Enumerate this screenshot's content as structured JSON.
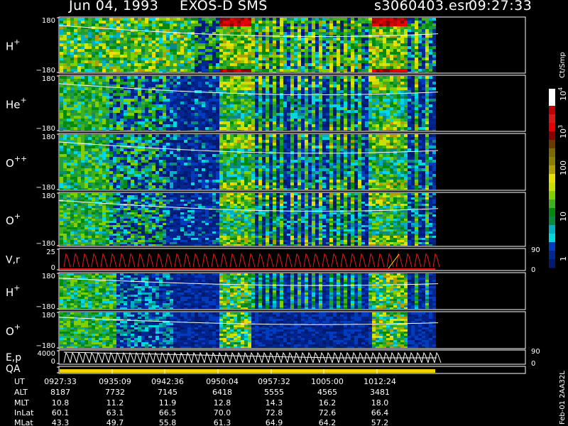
{
  "header": {
    "date": "Jun 04, 1993",
    "instrument": "EXOS-D SMS",
    "file": "s3060403.esr",
    "time": "09:27:33"
  },
  "chart_data": {
    "type": "heatmap",
    "time_ticks": [
      "0927:33",
      "0935:09",
      "0942:36",
      "0950:04",
      "0957:32",
      "1005:00",
      "1012:24"
    ],
    "panels": [
      {
        "label": "H",
        "sup": "+",
        "ytop": "180",
        "ybot": "−180",
        "kind": "spectrogram",
        "mode": "main"
      },
      {
        "label": "He",
        "sup": "+",
        "ytop": "180",
        "ybot": "−180",
        "kind": "spectrogram",
        "mode": "he"
      },
      {
        "label": "O",
        "sup": "++",
        "ytop": "180",
        "ybot": "−180",
        "kind": "spectrogram",
        "mode": "opp"
      },
      {
        "label": "O",
        "sup": "+",
        "ytop": "180",
        "ybot": "−180",
        "kind": "spectrogram",
        "mode": "op"
      },
      {
        "label": "V,r",
        "sup": "",
        "ytop": "25",
        "ybot": "0",
        "right_top": "90",
        "right_bot": "0",
        "kind": "line"
      },
      {
        "label": "H",
        "sup": "+",
        "ytop": "180",
        "ybot": "−180",
        "kind": "spectrogram",
        "mode": "h2"
      },
      {
        "label": "O",
        "sup": "+",
        "ytop": "180",
        "ybot": "−180",
        "kind": "spectrogram",
        "mode": "o2"
      },
      {
        "label": "E,p",
        "sup": "",
        "ytop": "4000",
        "ybot": "0",
        "right_top": "90",
        "right_bot": "0",
        "kind": "line"
      },
      {
        "label": "QA",
        "sup": "",
        "ytop": "",
        "ybot": "",
        "kind": "qa"
      }
    ],
    "colorbar": {
      "unit": "Ct/Smp",
      "labels": [
        {
          "base": "10",
          "exp": "4"
        },
        {
          "base": "10",
          "exp": "3"
        },
        {
          "base": "100",
          "exp": ""
        },
        {
          "base": "10",
          "exp": ""
        },
        {
          "base": "1",
          "exp": ""
        }
      ],
      "colors": [
        "#ffffff",
        "#ffffff",
        "#c00000",
        "#d81818",
        "#e80000",
        "#8a0000",
        "#6a3a00",
        "#7a6a00",
        "#8a8000",
        "#b0a000",
        "#e8e000",
        "#c8e000",
        "#80d000",
        "#40b020",
        "#008a10",
        "#0a8a40",
        "#00b0c0",
        "#00d8e0",
        "#003cc0",
        "#002890",
        "#001a70"
      ]
    },
    "orbit_table": {
      "rows": [
        {
          "label": "UT",
          "values": [
            "0927:33",
            "0935:09",
            "0942:36",
            "0950:04",
            "0957:32",
            "1005:00",
            "1012:24"
          ]
        },
        {
          "label": "ALT",
          "values": [
            "8187",
            "7732",
            "7145",
            "6418",
            "5555",
            "4565",
            "3481"
          ]
        },
        {
          "label": "MLT",
          "values": [
            "10.8",
            "11.2",
            "11.9",
            "12.8",
            "14.3",
            "16.2",
            "18.0"
          ]
        },
        {
          "label": "InLat",
          "values": [
            "60.1",
            "63.1",
            "66.5",
            "70.0",
            "72.8",
            "72.6",
            "66.4"
          ]
        },
        {
          "label": "MLat",
          "values": [
            "43.3",
            "49.7",
            "55.8",
            "61.3",
            "64.9",
            "64.2",
            "57.2"
          ]
        }
      ]
    },
    "footer": "Feb-01  2AA32L"
  }
}
